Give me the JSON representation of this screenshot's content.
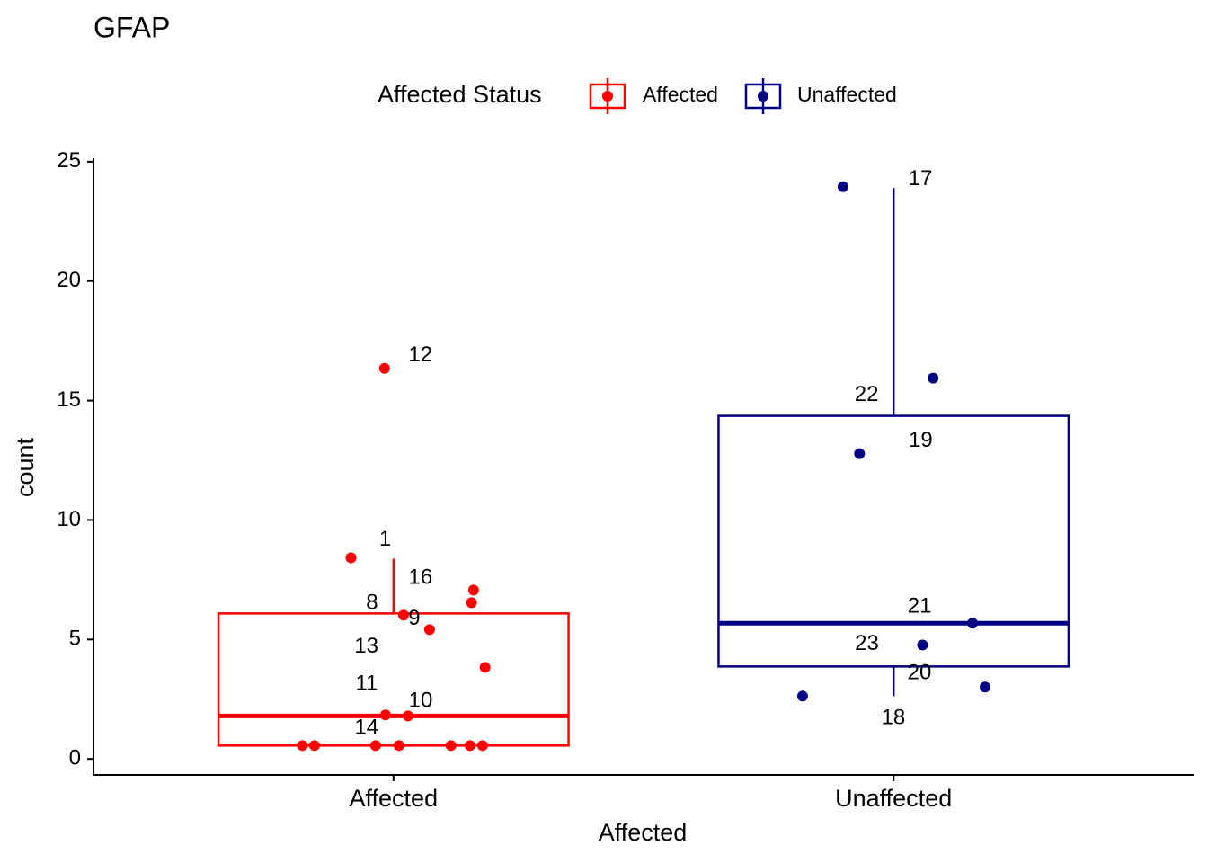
{
  "chart_data": {
    "type": "boxplot",
    "title": "GFAP",
    "x_label": "Affected",
    "y_label": "count",
    "legend_title": "Affected Status",
    "legend_position": "top",
    "categories": [
      "Affected",
      "Unaffected"
    ],
    "xlim": [
      0.4,
      2.6
    ],
    "ylim": [
      -0.67,
      25.07
    ],
    "yticks": [
      0,
      5,
      10,
      15,
      20,
      25
    ],
    "series": [
      {
        "name": "Affected",
        "color": "#ff0000",
        "box": {
          "whisker_low": 0.56,
          "q1": 0.56,
          "median": 1.8,
          "q3": 6.09,
          "whisker_high": 8.38
        },
        "points": {
          "x": [
            0.982,
            0.915,
            1.16,
            1.156,
            1.02,
            1.072,
            1.183,
            0.984,
            1.029,
            0.818,
            0.842,
            0.964,
            1.011,
            1.115,
            1.153,
            1.178
          ],
          "y": [
            16.35,
            8.42,
            7.07,
            6.54,
            6.02,
            5.41,
            3.83,
            1.84,
            1.8,
            0.56,
            0.56,
            0.56,
            0.56,
            0.56,
            0.56,
            0.56
          ],
          "labels": [
            "12",
            "1",
            "16",
            null,
            "8",
            "9",
            "13",
            "11",
            "10",
            null,
            null,
            "14",
            null,
            null,
            null,
            null
          ]
        }
      },
      {
        "name": "Unaffected",
        "color": "#000080",
        "box": {
          "whisker_low": 2.63,
          "q1": 3.87,
          "median": 5.68,
          "q3": 14.36,
          "whisker_high": 23.9
        },
        "points": {
          "x": [
            1.899,
            2.079,
            1.932,
            2.158,
            2.058,
            2.183,
            1.818
          ],
          "y": [
            23.95,
            15.94,
            12.78,
            5.68,
            4.77,
            3.01,
            2.63
          ],
          "labels": [
            "17",
            "22",
            "19",
            "21",
            "23",
            "20",
            "18"
          ]
        }
      }
    ]
  }
}
